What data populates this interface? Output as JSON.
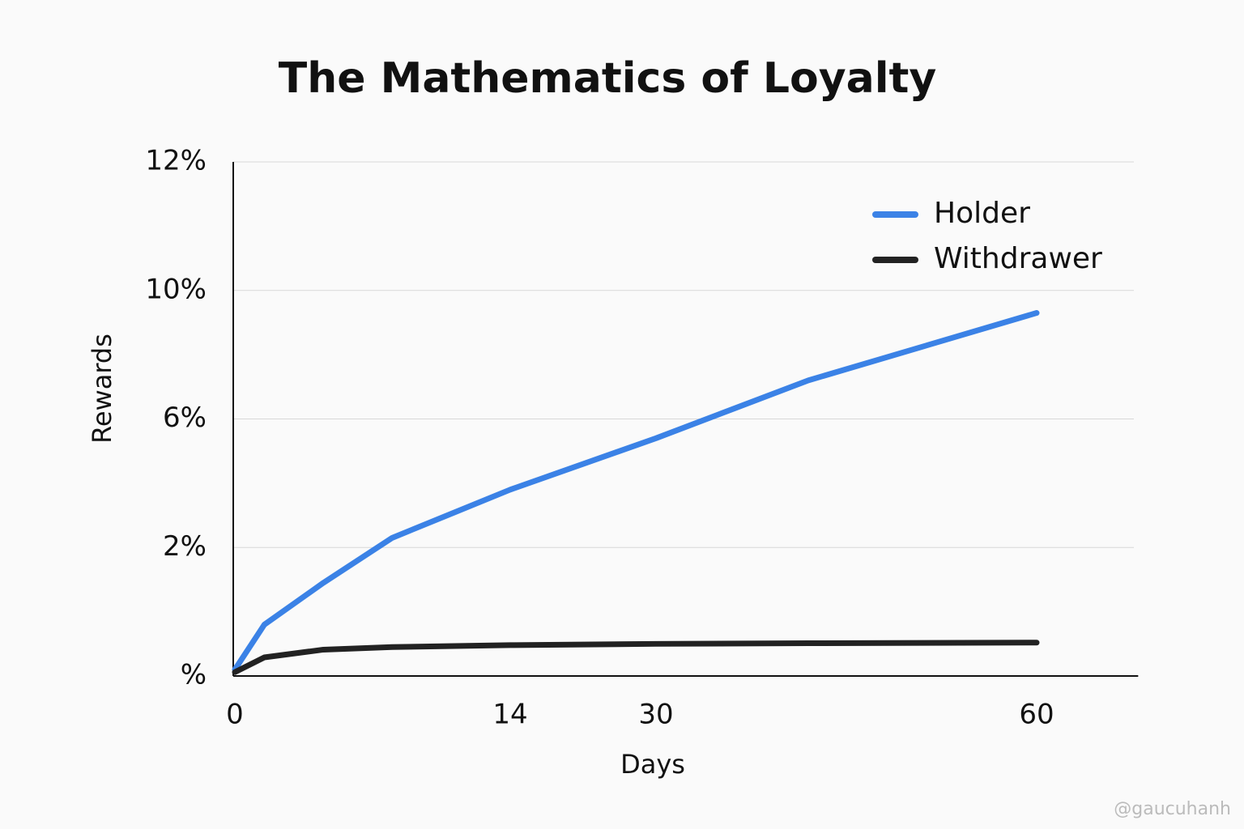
{
  "chart_data": {
    "type": "line",
    "title": "The Mathematics of Loyalty",
    "x_label": "Days",
    "y_label": "Rewards",
    "x": [
      0,
      1.5,
      4.5,
      8,
      14,
      22,
      30,
      42,
      60
    ],
    "series": [
      {
        "name": "Holder",
        "color": "#3b82e6",
        "values": [
          0.1,
          0.8,
          1.45,
          2.3,
          3.8,
          4.6,
          5.4,
          7.2,
          9.3
        ]
      },
      {
        "name": "Withdrawer",
        "color": "#222222",
        "values": [
          0.06,
          0.29,
          0.41,
          0.45,
          0.48,
          0.49,
          0.5,
          0.51,
          0.52
        ]
      }
    ],
    "xlim": [
      0,
      68
    ],
    "xticks": [
      0,
      14,
      30,
      60
    ],
    "ylim": [
      0,
      12
    ],
    "yticks": [
      {
        "value": 0,
        "label": "%"
      },
      {
        "value": 2,
        "label": "2%"
      },
      {
        "value": 6,
        "label": "6%"
      },
      {
        "value": 10,
        "label": "10%"
      },
      {
        "value": 12,
        "label": "12%"
      }
    ],
    "grid": true,
    "legend": "upper right",
    "watermark": "@gaucuhanh"
  }
}
